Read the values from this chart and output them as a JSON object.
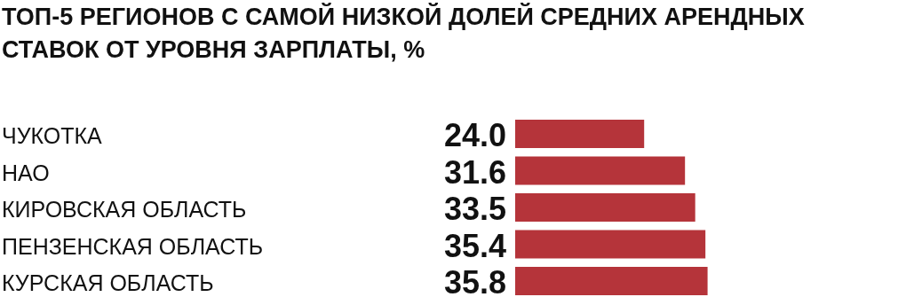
{
  "chart_data": {
    "type": "bar",
    "orientation": "horizontal",
    "title": "ТОП-5 РЕГИОНОВ С САМОЙ НИЗКОЙ ДОЛЕЙ СРЕДНИХ АРЕНДНЫХ СТАВОК ОТ УРОВНЯ ЗАРПЛАТЫ, %",
    "categories": [
      "ЧУКОТКА",
      "НАО",
      "КИРОВСКАЯ ОБЛАСТЬ",
      "ПЕНЗЕНСКАЯ ОБЛАСТЬ",
      "КУРСКАЯ ОБЛАСТЬ"
    ],
    "values": [
      24.0,
      31.6,
      33.5,
      35.4,
      35.8
    ],
    "value_labels": [
      "24.0",
      "31.6",
      "33.5",
      "35.4",
      "35.8"
    ],
    "color": "#b5343a"
  }
}
